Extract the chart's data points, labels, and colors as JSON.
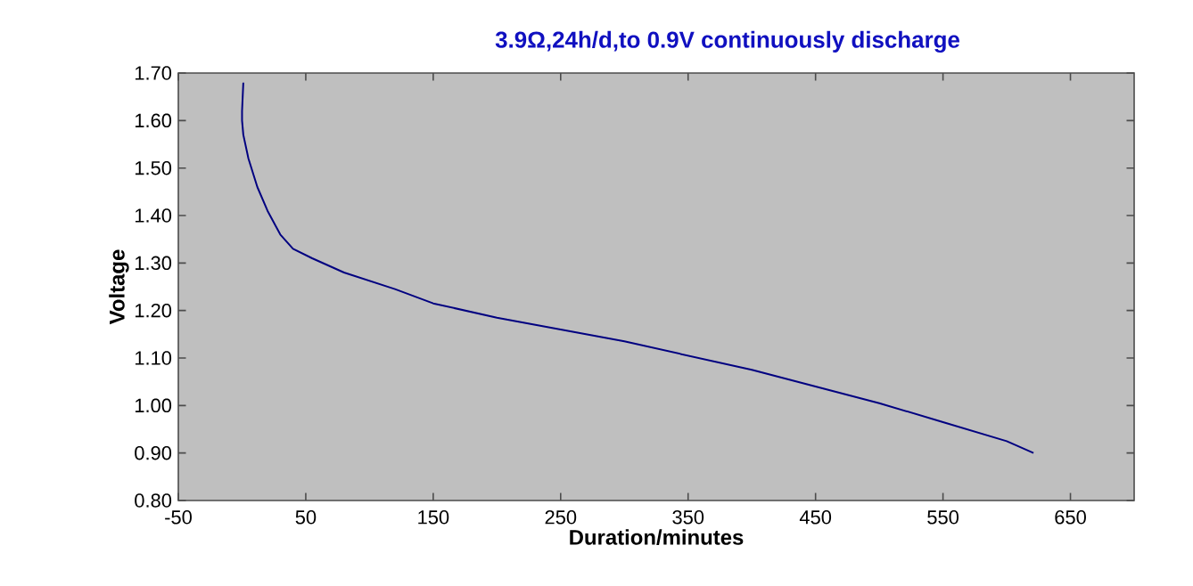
{
  "chart_data": {
    "type": "line",
    "title": "3.9Ω,24h/d,to 0.9V continuously discharge",
    "xlabel": "Duration/minutes",
    "ylabel": "Voltage",
    "xlim": [
      -50,
      700
    ],
    "xticks": [
      -50,
      50,
      150,
      250,
      350,
      450,
      550,
      650
    ],
    "ylim": [
      0.8,
      1.7
    ],
    "yticks": [
      {
        "value": 0.8,
        "label": "0.80"
      },
      {
        "value": 0.9,
        "label": "0.90"
      },
      {
        "value": 1.0,
        "label": "1.00"
      },
      {
        "value": 1.1,
        "label": "1.10"
      },
      {
        "value": 1.2,
        "label": "1.20"
      },
      {
        "value": 1.3,
        "label": "1.30"
      },
      {
        "value": 1.4,
        "label": "1.40"
      },
      {
        "value": 1.5,
        "label": "1.50"
      },
      {
        "value": 1.6,
        "label": "1.60"
      },
      {
        "value": 1.7,
        "label": "1.70"
      }
    ],
    "grid": false,
    "marker": "none",
    "line_style": "solid",
    "series": [
      {
        "color": "#000080",
        "x": [
          1,
          0,
          0,
          1,
          5,
          12,
          20,
          30,
          40,
          55,
          80,
          120,
          150,
          200,
          250,
          300,
          350,
          400,
          450,
          500,
          550,
          600,
          621
        ],
        "values": [
          1.68,
          1.62,
          1.6,
          1.57,
          1.52,
          1.46,
          1.41,
          1.36,
          1.33,
          1.31,
          1.28,
          1.245,
          1.215,
          1.185,
          1.16,
          1.135,
          1.105,
          1.075,
          1.04,
          1.005,
          0.965,
          0.925,
          0.9
        ]
      }
    ]
  }
}
